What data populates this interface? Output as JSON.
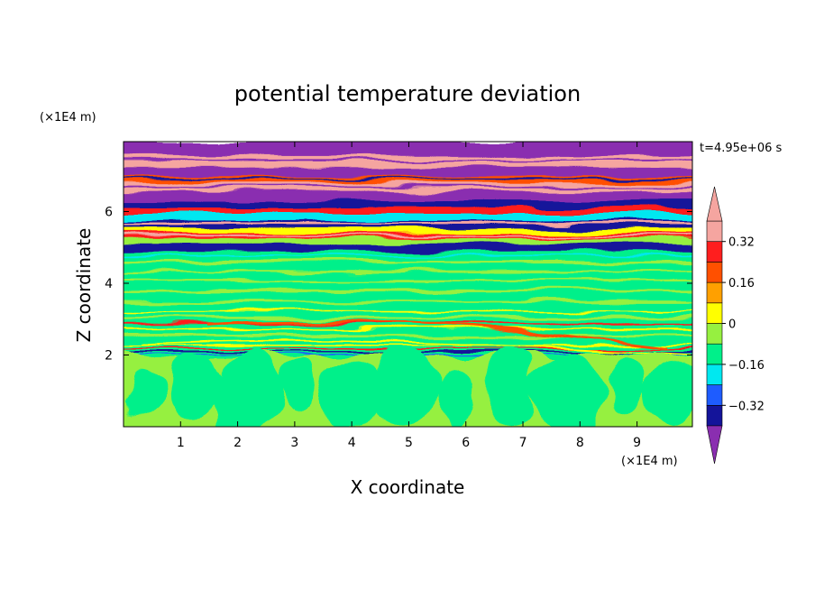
{
  "chart_data": {
    "type": "heatmap",
    "title": "potential temperature deviation",
    "xlabel": "X coordinate",
    "ylabel": "Z coordinate",
    "x_unit": "(×1E4 m)",
    "y_unit": "(×1E4 m)",
    "time_label": "t=4.95e+06 s",
    "xlim": [
      0,
      9.97
    ],
    "ylim": [
      0,
      7.95
    ],
    "x_ticks": [
      1,
      2,
      3,
      4,
      5,
      6,
      7,
      8,
      9
    ],
    "y_ticks": [
      2,
      4,
      6
    ],
    "colorbar": {
      "levels": [
        -0.4,
        -0.32,
        -0.24,
        -0.16,
        -0.08,
        0,
        0.08,
        0.16,
        0.24,
        0.32,
        0.4
      ],
      "colors": [
        "#8a2eb0",
        "#14149a",
        "#1e5cff",
        "#00e8f0",
        "#00f08a",
        "#96f040",
        "#ffff00",
        "#ffa000",
        "#ff5000",
        "#ff1e1e",
        "#f5a5a0",
        "#f5a5a0"
      ],
      "under_color": "#8a2eb0",
      "over_color": "#f5a5a0",
      "labels": [
        {
          "value": 0.32,
          "text": "0.32"
        },
        {
          "value": 0.16,
          "text": "0.16"
        },
        {
          "value": 0,
          "text": "0"
        },
        {
          "value": -0.16,
          "text": "−0.16"
        },
        {
          "value": -0.32,
          "text": "−0.32"
        }
      ]
    }
  }
}
